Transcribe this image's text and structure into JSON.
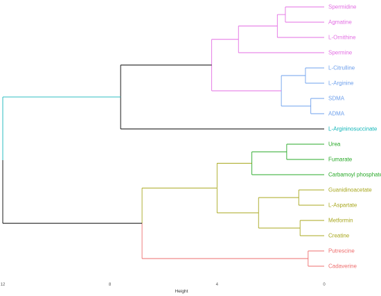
{
  "chart_data": {
    "type": "dendrogram",
    "xlabel": "Height",
    "x_ticks": [
      12,
      8,
      4,
      0
    ],
    "xlim": [
      12,
      0
    ],
    "orientation": "horizontal",
    "leaves": [
      {
        "label": "Spermidine",
        "color": "#e36ee3"
      },
      {
        "label": "Agmatine",
        "color": "#e36ee3"
      },
      {
        "label": "L-Ornithine",
        "color": "#e36ee3"
      },
      {
        "label": "Spermine",
        "color": "#e36ee3"
      },
      {
        "label": "L-Citrulline",
        "color": "#6ea0ec"
      },
      {
        "label": "L-Arginine",
        "color": "#6ea0ec"
      },
      {
        "label": "SDMA",
        "color": "#6ea0ec"
      },
      {
        "label": "ADMA",
        "color": "#6ea0ec"
      },
      {
        "label": "L-Argininosuccinate",
        "color": "#12b6b9"
      },
      {
        "label": "Urea",
        "color": "#27a827"
      },
      {
        "label": "Fumarate",
        "color": "#27a827"
      },
      {
        "label": "Carbamoyl phosphate",
        "color": "#27a827"
      },
      {
        "label": "Guanidinoacetate",
        "color": "#a8a71e"
      },
      {
        "label": "L-Aspartate",
        "color": "#a8a71e"
      },
      {
        "label": "Metformin",
        "color": "#a8a71e"
      },
      {
        "label": "Creatine",
        "color": "#a8a71e"
      },
      {
        "label": "Putrescine",
        "color": "#ee6d6d"
      },
      {
        "label": "Cadaverine",
        "color": "#ee6d6d"
      }
    ],
    "merges": [
      {
        "a": "L0",
        "b": "L1",
        "height": 1.45,
        "color": "#e36ee3"
      },
      {
        "a": "M0",
        "b": "L2",
        "height": 1.75,
        "color": "#e36ee3"
      },
      {
        "a": "M1",
        "b": "L3",
        "height": 3.2,
        "color": "#e36ee3"
      },
      {
        "a": "L4",
        "b": "L5",
        "height": 0.7,
        "color": "#6ea0ec"
      },
      {
        "a": "L6",
        "b": "L7",
        "height": 0.5,
        "color": "#6ea0ec"
      },
      {
        "a": "M3",
        "b": "M4",
        "height": 1.6,
        "color": "#6ea0ec"
      },
      {
        "a": "M2",
        "b": "M5",
        "height": 4.2,
        "color": "#e36ee3"
      },
      {
        "a": "M6",
        "b": "L8",
        "height": 7.6,
        "color": "#000000"
      },
      {
        "a": "L9",
        "b": "L10",
        "height": 1.4,
        "color": "#27a827"
      },
      {
        "a": "M8",
        "b": "L11",
        "height": 2.7,
        "color": "#27a827"
      },
      {
        "a": "L12",
        "b": "L13",
        "height": 0.95,
        "color": "#a8a71e"
      },
      {
        "a": "L14",
        "b": "L15",
        "height": 0.9,
        "color": "#a8a71e"
      },
      {
        "a": "M10",
        "b": "M11",
        "height": 2.45,
        "color": "#a8a71e"
      },
      {
        "a": "M9",
        "b": "M12",
        "height": 4.0,
        "color": "#a8a71e"
      },
      {
        "a": "L16",
        "b": "L17",
        "height": 0.6,
        "color": "#ee6d6d"
      },
      {
        "a": "M13",
        "b": "M14",
        "height": 6.8,
        "color": "#000000"
      },
      {
        "a": "M7",
        "b": "M15",
        "height": 12.0,
        "color": "#000000"
      }
    ],
    "branch_colors": {
      "M7": "#12b6b9",
      "M13": "#a8a71e",
      "M14": "#ee6d6d"
    }
  }
}
